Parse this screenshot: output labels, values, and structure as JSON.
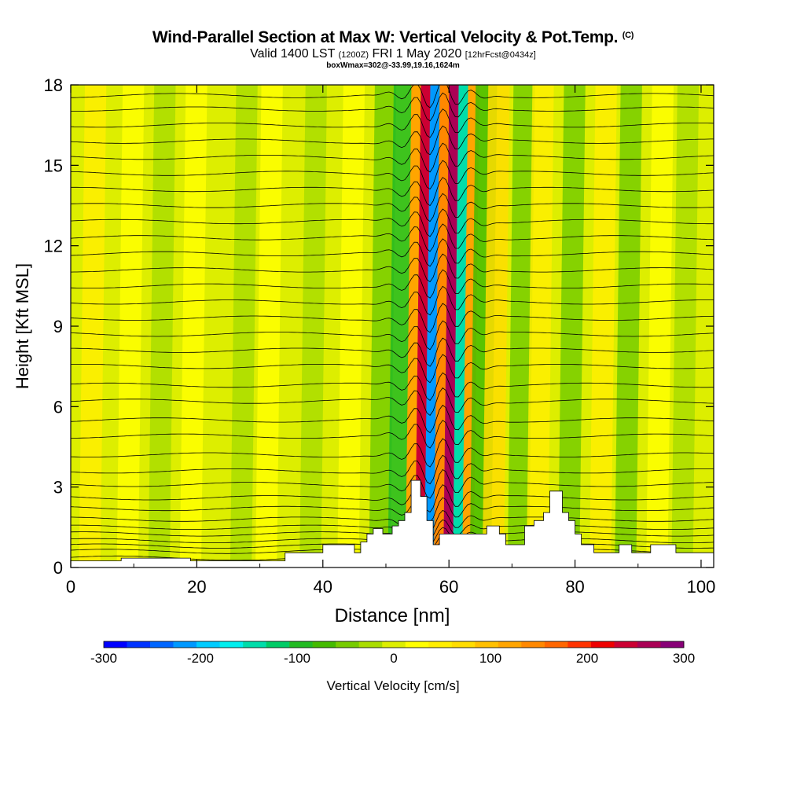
{
  "header": {
    "title_main": "Wind-Parallel Section at Max W: Vertical Velocity & Pot.Temp.",
    "title_mark": "(C)",
    "subtitle_a": "Valid 1400 LST ",
    "subtitle_b": "(1200Z)",
    "subtitle_c": " FRI 1 May 2020 ",
    "subtitle_d": "[12hrFcst@0434z]",
    "subtitle2": "boxWmax=302@-33.99,19.16,1624m"
  },
  "colorbar": {
    "title": "Vertical Velocity [cm/s]",
    "ticks": [
      "-300",
      "-200",
      "-100",
      "0",
      "100",
      "200",
      "300"
    ],
    "colors": [
      "#0000ff",
      "#0033ff",
      "#0066ff",
      "#0099ff",
      "#00ccff",
      "#00eeee",
      "#00ddaa",
      "#00cc66",
      "#22bb22",
      "#44bb00",
      "#77cc00",
      "#aadd00",
      "#ddee00",
      "#ffff00",
      "#ffee00",
      "#ffdd00",
      "#ffc000",
      "#ffa500",
      "#ff8800",
      "#ff6600",
      "#ff3300",
      "#ee0000",
      "#cc0033",
      "#aa0055",
      "#880077"
    ]
  },
  "chart_data": {
    "type": "heatmap",
    "title": "Wind-Parallel Section at Max W: Vertical Velocity & Pot.Temp.",
    "xlabel": "Distance [nm]",
    "ylabel": "Height [Kft MSL]",
    "xlim": [
      0,
      102
    ],
    "ylim": [
      0,
      18
    ],
    "xticks": [
      "0",
      "20",
      "40",
      "60",
      "80",
      "100"
    ],
    "yticks": [
      "0",
      "3",
      "6",
      "9",
      "12",
      "15",
      "18"
    ],
    "colorbar_range": [
      -300,
      300
    ],
    "max_w": 302,
    "velocity_bands": [
      {
        "x": 3,
        "w": 40
      },
      {
        "x": 9,
        "w": 30
      },
      {
        "x": 14,
        "w": -30
      },
      {
        "x": 19,
        "w": 25
      },
      {
        "x": 27,
        "w": -35
      },
      {
        "x": 31,
        "w": 25
      },
      {
        "x": 38,
        "w": -30
      },
      {
        "x": 44,
        "w": 25
      },
      {
        "x": 49,
        "w": -40
      },
      {
        "x": 52,
        "w": -90
      },
      {
        "x": 54,
        "w": 120
      },
      {
        "x": 55.5,
        "w": 230
      },
      {
        "x": 57,
        "w": -220
      },
      {
        "x": 58.5,
        "w": 150
      },
      {
        "x": 60,
        "w": 260
      },
      {
        "x": 61.5,
        "w": -140
      },
      {
        "x": 63,
        "w": 110
      },
      {
        "x": 65,
        "w": -80
      },
      {
        "x": 67,
        "w": 60
      },
      {
        "x": 71,
        "w": -60
      },
      {
        "x": 74,
        "w": 45
      },
      {
        "x": 79,
        "w": -50
      },
      {
        "x": 84,
        "w": 40
      },
      {
        "x": 88,
        "w": -40
      },
      {
        "x": 93,
        "w": 35
      },
      {
        "x": 97,
        "w": -35
      }
    ],
    "terrain_kft": [
      [
        0,
        0.25
      ],
      [
        8,
        0.25
      ],
      [
        8,
        0.35
      ],
      [
        19,
        0.35
      ],
      [
        19,
        0.25
      ],
      [
        34,
        0.25
      ],
      [
        34,
        0.55
      ],
      [
        40,
        0.55
      ],
      [
        40,
        0.85
      ],
      [
        45,
        0.85
      ],
      [
        45,
        0.55
      ],
      [
        46,
        0.55
      ],
      [
        46,
        0.95
      ],
      [
        47,
        0.95
      ],
      [
        47,
        1.25
      ],
      [
        48,
        1.25
      ],
      [
        48,
        1.45
      ],
      [
        49.5,
        1.45
      ],
      [
        49.5,
        1.25
      ],
      [
        51,
        1.25
      ],
      [
        51,
        1.55
      ],
      [
        52,
        1.55
      ],
      [
        52,
        1.75
      ],
      [
        53,
        1.75
      ],
      [
        53,
        2.05
      ],
      [
        54,
        2.05
      ],
      [
        54,
        3.25
      ],
      [
        55.5,
        3.25
      ],
      [
        55.5,
        2.65
      ],
      [
        56.5,
        2.65
      ],
      [
        56.5,
        1.75
      ],
      [
        57.5,
        1.75
      ],
      [
        57.5,
        0.85
      ],
      [
        58.5,
        0.85
      ],
      [
        58.5,
        1.25
      ],
      [
        66,
        1.25
      ],
      [
        66,
        1.55
      ],
      [
        68,
        1.55
      ],
      [
        68,
        1.25
      ],
      [
        69,
        1.25
      ],
      [
        69,
        0.85
      ],
      [
        72,
        0.85
      ],
      [
        72,
        1.55
      ],
      [
        73.5,
        1.55
      ],
      [
        73.5,
        1.75
      ],
      [
        75,
        1.75
      ],
      [
        75,
        2.05
      ],
      [
        76,
        2.05
      ],
      [
        76,
        2.85
      ],
      [
        78,
        2.85
      ],
      [
        78,
        2.05
      ],
      [
        79,
        2.05
      ],
      [
        79,
        1.75
      ],
      [
        80,
        1.75
      ],
      [
        80,
        1.25
      ],
      [
        81,
        1.25
      ],
      [
        81,
        0.85
      ],
      [
        83,
        0.85
      ],
      [
        83,
        0.55
      ],
      [
        87,
        0.55
      ],
      [
        87,
        0.85
      ],
      [
        89,
        0.85
      ],
      [
        89,
        0.55
      ],
      [
        92,
        0.55
      ],
      [
        92,
        0.85
      ],
      [
        96,
        0.85
      ],
      [
        96,
        0.55
      ],
      [
        102,
        0.55
      ]
    ],
    "isentrope_start_kft": [
      0.35,
      0.6,
      0.8,
      1.0,
      1.25,
      1.5,
      1.8,
      2.2,
      2.6,
      3.1,
      3.6,
      4.2,
      4.9,
      5.5,
      6.2,
      6.8,
      7.5,
      8.1,
      8.7,
      9.3,
      9.9,
      10.5,
      11.1,
      11.7,
      12.3,
      12.9,
      13.5,
      14.1,
      14.7,
      15.3,
      15.9,
      16.5,
      17.1,
      17.6
    ]
  }
}
